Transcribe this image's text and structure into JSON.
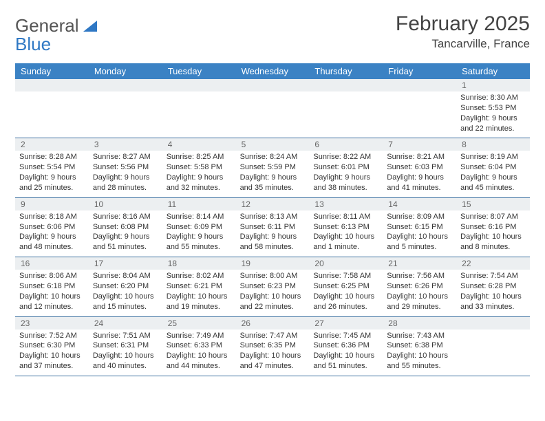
{
  "logo": {
    "word1": "General",
    "word2": "Blue"
  },
  "title": "February 2025",
  "location": "Tancarville, France",
  "colors": {
    "header_bg": "#3b82c4",
    "header_text": "#ffffff",
    "daynum_bg": "#eceff1",
    "border": "#3b6fa0",
    "logo_gray": "#555555",
    "logo_blue": "#2f78c4",
    "text": "#333333"
  },
  "dayNames": [
    "Sunday",
    "Monday",
    "Tuesday",
    "Wednesday",
    "Thursday",
    "Friday",
    "Saturday"
  ],
  "weeks": [
    [
      {
        "n": "",
        "sunrise": "",
        "sunset": "",
        "daylight": ""
      },
      {
        "n": "",
        "sunrise": "",
        "sunset": "",
        "daylight": ""
      },
      {
        "n": "",
        "sunrise": "",
        "sunset": "",
        "daylight": ""
      },
      {
        "n": "",
        "sunrise": "",
        "sunset": "",
        "daylight": ""
      },
      {
        "n": "",
        "sunrise": "",
        "sunset": "",
        "daylight": ""
      },
      {
        "n": "",
        "sunrise": "",
        "sunset": "",
        "daylight": ""
      },
      {
        "n": "1",
        "sunrise": "Sunrise: 8:30 AM",
        "sunset": "Sunset: 5:53 PM",
        "daylight": "Daylight: 9 hours and 22 minutes."
      }
    ],
    [
      {
        "n": "2",
        "sunrise": "Sunrise: 8:28 AM",
        "sunset": "Sunset: 5:54 PM",
        "daylight": "Daylight: 9 hours and 25 minutes."
      },
      {
        "n": "3",
        "sunrise": "Sunrise: 8:27 AM",
        "sunset": "Sunset: 5:56 PM",
        "daylight": "Daylight: 9 hours and 28 minutes."
      },
      {
        "n": "4",
        "sunrise": "Sunrise: 8:25 AM",
        "sunset": "Sunset: 5:58 PM",
        "daylight": "Daylight: 9 hours and 32 minutes."
      },
      {
        "n": "5",
        "sunrise": "Sunrise: 8:24 AM",
        "sunset": "Sunset: 5:59 PM",
        "daylight": "Daylight: 9 hours and 35 minutes."
      },
      {
        "n": "6",
        "sunrise": "Sunrise: 8:22 AM",
        "sunset": "Sunset: 6:01 PM",
        "daylight": "Daylight: 9 hours and 38 minutes."
      },
      {
        "n": "7",
        "sunrise": "Sunrise: 8:21 AM",
        "sunset": "Sunset: 6:03 PM",
        "daylight": "Daylight: 9 hours and 41 minutes."
      },
      {
        "n": "8",
        "sunrise": "Sunrise: 8:19 AM",
        "sunset": "Sunset: 6:04 PM",
        "daylight": "Daylight: 9 hours and 45 minutes."
      }
    ],
    [
      {
        "n": "9",
        "sunrise": "Sunrise: 8:18 AM",
        "sunset": "Sunset: 6:06 PM",
        "daylight": "Daylight: 9 hours and 48 minutes."
      },
      {
        "n": "10",
        "sunrise": "Sunrise: 8:16 AM",
        "sunset": "Sunset: 6:08 PM",
        "daylight": "Daylight: 9 hours and 51 minutes."
      },
      {
        "n": "11",
        "sunrise": "Sunrise: 8:14 AM",
        "sunset": "Sunset: 6:09 PM",
        "daylight": "Daylight: 9 hours and 55 minutes."
      },
      {
        "n": "12",
        "sunrise": "Sunrise: 8:13 AM",
        "sunset": "Sunset: 6:11 PM",
        "daylight": "Daylight: 9 hours and 58 minutes."
      },
      {
        "n": "13",
        "sunrise": "Sunrise: 8:11 AM",
        "sunset": "Sunset: 6:13 PM",
        "daylight": "Daylight: 10 hours and 1 minute."
      },
      {
        "n": "14",
        "sunrise": "Sunrise: 8:09 AM",
        "sunset": "Sunset: 6:15 PM",
        "daylight": "Daylight: 10 hours and 5 minutes."
      },
      {
        "n": "15",
        "sunrise": "Sunrise: 8:07 AM",
        "sunset": "Sunset: 6:16 PM",
        "daylight": "Daylight: 10 hours and 8 minutes."
      }
    ],
    [
      {
        "n": "16",
        "sunrise": "Sunrise: 8:06 AM",
        "sunset": "Sunset: 6:18 PM",
        "daylight": "Daylight: 10 hours and 12 minutes."
      },
      {
        "n": "17",
        "sunrise": "Sunrise: 8:04 AM",
        "sunset": "Sunset: 6:20 PM",
        "daylight": "Daylight: 10 hours and 15 minutes."
      },
      {
        "n": "18",
        "sunrise": "Sunrise: 8:02 AM",
        "sunset": "Sunset: 6:21 PM",
        "daylight": "Daylight: 10 hours and 19 minutes."
      },
      {
        "n": "19",
        "sunrise": "Sunrise: 8:00 AM",
        "sunset": "Sunset: 6:23 PM",
        "daylight": "Daylight: 10 hours and 22 minutes."
      },
      {
        "n": "20",
        "sunrise": "Sunrise: 7:58 AM",
        "sunset": "Sunset: 6:25 PM",
        "daylight": "Daylight: 10 hours and 26 minutes."
      },
      {
        "n": "21",
        "sunrise": "Sunrise: 7:56 AM",
        "sunset": "Sunset: 6:26 PM",
        "daylight": "Daylight: 10 hours and 29 minutes."
      },
      {
        "n": "22",
        "sunrise": "Sunrise: 7:54 AM",
        "sunset": "Sunset: 6:28 PM",
        "daylight": "Daylight: 10 hours and 33 minutes."
      }
    ],
    [
      {
        "n": "23",
        "sunrise": "Sunrise: 7:52 AM",
        "sunset": "Sunset: 6:30 PM",
        "daylight": "Daylight: 10 hours and 37 minutes."
      },
      {
        "n": "24",
        "sunrise": "Sunrise: 7:51 AM",
        "sunset": "Sunset: 6:31 PM",
        "daylight": "Daylight: 10 hours and 40 minutes."
      },
      {
        "n": "25",
        "sunrise": "Sunrise: 7:49 AM",
        "sunset": "Sunset: 6:33 PM",
        "daylight": "Daylight: 10 hours and 44 minutes."
      },
      {
        "n": "26",
        "sunrise": "Sunrise: 7:47 AM",
        "sunset": "Sunset: 6:35 PM",
        "daylight": "Daylight: 10 hours and 47 minutes."
      },
      {
        "n": "27",
        "sunrise": "Sunrise: 7:45 AM",
        "sunset": "Sunset: 6:36 PM",
        "daylight": "Daylight: 10 hours and 51 minutes."
      },
      {
        "n": "28",
        "sunrise": "Sunrise: 7:43 AM",
        "sunset": "Sunset: 6:38 PM",
        "daylight": "Daylight: 10 hours and 55 minutes."
      },
      {
        "n": "",
        "sunrise": "",
        "sunset": "",
        "daylight": ""
      }
    ]
  ]
}
